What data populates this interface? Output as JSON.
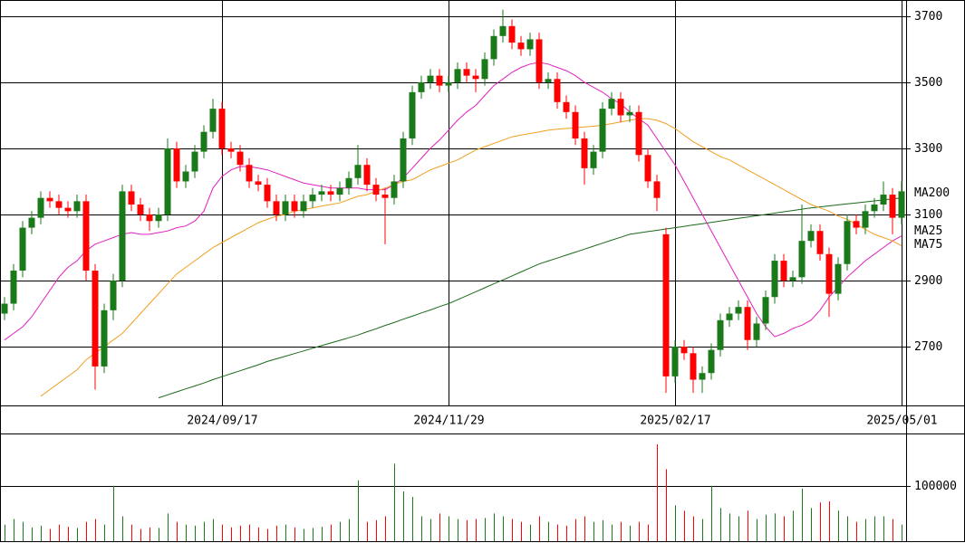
{
  "chart_data": [
    {
      "type": "candlestick",
      "categories": [
        null,
        null,
        null,
        null,
        null,
        null,
        null,
        null,
        null,
        null,
        null,
        null,
        null,
        null,
        null,
        null,
        null,
        null,
        null,
        null,
        null,
        null,
        null,
        null,
        "2024/09/17",
        null,
        null,
        null,
        null,
        null,
        null,
        null,
        null,
        null,
        null,
        null,
        null,
        null,
        null,
        null,
        null,
        null,
        null,
        null,
        null,
        null,
        null,
        null,
        null,
        "2024/11/29",
        null,
        null,
        null,
        null,
        null,
        null,
        null,
        null,
        null,
        null,
        null,
        null,
        null,
        null,
        null,
        null,
        null,
        null,
        null,
        null,
        null,
        null,
        null,
        null,
        "2025/02/17",
        null,
        null,
        null,
        null,
        null,
        null,
        null,
        null,
        null,
        null,
        null,
        null,
        null,
        null,
        null,
        null,
        null,
        null,
        null,
        null,
        null,
        null,
        null,
        null,
        "2025/05/01"
      ],
      "open": [
        2800,
        2830,
        2930,
        3060,
        3090,
        3150,
        3140,
        3120,
        3110,
        3140,
        2930,
        2640,
        2810,
        2900,
        3170,
        3130,
        3100,
        3080,
        3100,
        3300,
        3200,
        3230,
        3290,
        3350,
        3420,
        3300,
        3290,
        3250,
        3200,
        3190,
        3140,
        3100,
        3140,
        3110,
        3140,
        3160,
        3170,
        3160,
        3180,
        3210,
        3250,
        3190,
        3160,
        3150,
        3200,
        3330,
        3470,
        3500,
        3520,
        3490,
        3500,
        3540,
        3520,
        3510,
        3570,
        3640,
        3670,
        3620,
        3600,
        3630,
        3500,
        3510,
        3440,
        3410,
        3330,
        3240,
        3290,
        3420,
        3450,
        3400,
        3410,
        3280,
        3200,
        3040,
        2610,
        2700,
        2680,
        2600,
        2620,
        2690,
        2780,
        2800,
        2820,
        2720,
        2770,
        2850,
        2960,
        2900,
        2910,
        3020,
        3050,
        2980,
        2860,
        2950,
        3080,
        3060,
        3110,
        3130,
        3160,
        3090
      ],
      "high": [
        2850,
        2950,
        3080,
        3110,
        3170,
        3170,
        3160,
        3140,
        3160,
        3160,
        2950,
        2830,
        2920,
        3190,
        3190,
        3150,
        3120,
        3120,
        3330,
        3320,
        3250,
        3310,
        3370,
        3450,
        3440,
        3320,
        3310,
        3270,
        3220,
        3210,
        3160,
        3160,
        3160,
        3160,
        3180,
        3190,
        3190,
        3200,
        3230,
        3310,
        3270,
        3210,
        3180,
        3220,
        3350,
        3490,
        3520,
        3540,
        3540,
        3520,
        3560,
        3560,
        3540,
        3590,
        3660,
        3720,
        3690,
        3640,
        3650,
        3650,
        3530,
        3530,
        3460,
        3430,
        3350,
        3310,
        3440,
        3470,
        3470,
        3430,
        3430,
        3300,
        3220,
        3060,
        2720,
        2720,
        2700,
        2640,
        2710,
        2800,
        2820,
        2840,
        2840,
        2790,
        2870,
        2980,
        2980,
        2930,
        3130,
        3070,
        3070,
        3000,
        2970,
        3100,
        3100,
        3130,
        3150,
        3200,
        3180,
        3200
      ],
      "low": [
        2780,
        2810,
        2910,
        3040,
        3070,
        3120,
        3100,
        3090,
        3090,
        2900,
        2570,
        2620,
        2780,
        2880,
        3110,
        3080,
        3050,
        3060,
        3080,
        3180,
        3180,
        3210,
        3270,
        3330,
        3280,
        3270,
        3230,
        3180,
        3170,
        3120,
        3080,
        3080,
        3090,
        3090,
        3120,
        3140,
        3140,
        3140,
        3160,
        3190,
        3170,
        3140,
        3010,
        3130,
        3180,
        3310,
        3450,
        3480,
        3470,
        3470,
        3480,
        3500,
        3470,
        3490,
        3550,
        3620,
        3600,
        3580,
        3580,
        3480,
        3480,
        3420,
        3390,
        3310,
        3190,
        3220,
        3270,
        3400,
        3380,
        3380,
        3260,
        3180,
        3110,
        2560,
        2590,
        2660,
        2560,
        2560,
        2600,
        2670,
        2760,
        2780,
        2690,
        2700,
        2750,
        2830,
        2880,
        2880,
        2890,
        3000,
        2960,
        2790,
        2840,
        2930,
        3040,
        3040,
        3090,
        3110,
        3040,
        3070
      ],
      "close": [
        2830,
        2930,
        3060,
        3090,
        3150,
        3140,
        3120,
        3110,
        3140,
        2930,
        2640,
        2810,
        2900,
        3170,
        3130,
        3100,
        3080,
        3100,
        3300,
        3200,
        3230,
        3290,
        3350,
        3420,
        3300,
        3290,
        3250,
        3200,
        3190,
        3140,
        3100,
        3140,
        3110,
        3140,
        3160,
        3170,
        3160,
        3180,
        3210,
        3250,
        3190,
        3160,
        3150,
        3200,
        3330,
        3470,
        3500,
        3520,
        3490,
        3500,
        3540,
        3520,
        3510,
        3570,
        3640,
        3670,
        3620,
        3600,
        3630,
        3500,
        3510,
        3440,
        3410,
        3330,
        3240,
        3290,
        3420,
        3450,
        3400,
        3410,
        3280,
        3200,
        3150,
        2610,
        2700,
        2680,
        2600,
        2620,
        2690,
        2780,
        2800,
        2820,
        2720,
        2770,
        2850,
        2960,
        2900,
        2910,
        3020,
        3050,
        2980,
        2860,
        2950,
        3080,
        3060,
        3110,
        3130,
        3160,
        3090,
        3170
      ],
      "up_color": "#1a7a1a",
      "down_color": "#ff0000",
      "series": [
        {
          "name": "MA200",
          "color": "#1a6a1a",
          "values": [
            null,
            null,
            null,
            null,
            null,
            null,
            null,
            null,
            null,
            null,
            null,
            null,
            null,
            null,
            null,
            null,
            null,
            2545,
            2554,
            2563,
            2572,
            2581,
            2590,
            2600,
            2609,
            2618,
            2627,
            2636,
            2645,
            2655,
            2663,
            2671,
            2679,
            2687,
            2695,
            2703,
            2711,
            2719,
            2727,
            2735,
            2745,
            2754,
            2764,
            2773,
            2783,
            2792,
            2802,
            2811,
            2821,
            2830,
            2842,
            2854,
            2866,
            2878,
            2890,
            2902,
            2914,
            2926,
            2938,
            2950,
            2959,
            2968,
            2977,
            2986,
            2995,
            3004,
            3013,
            3022,
            3031,
            3040,
            3044,
            3048,
            3052,
            3056,
            3060,
            3064,
            3068,
            3072,
            3076,
            3080,
            3084,
            3088,
            3092,
            3096,
            3100,
            3104,
            3108,
            3112,
            3116,
            3120,
            3123,
            3126,
            3129,
            3132,
            3135,
            3138,
            3141,
            3144,
            3147,
            3150
          ]
        },
        {
          "name": "MA25",
          "color": "#e020c0",
          "values": [
            2720,
            2740,
            2760,
            2790,
            2830,
            2870,
            2910,
            2940,
            2960,
            2990,
            3010,
            3020,
            3030,
            3040,
            3045,
            3040,
            3040,
            3045,
            3050,
            3060,
            3065,
            3080,
            3110,
            3180,
            3215,
            3235,
            3245,
            3245,
            3240,
            3235,
            3225,
            3215,
            3205,
            3195,
            3190,
            3185,
            3180,
            3180,
            3180,
            3180,
            3175,
            3175,
            3175,
            3190,
            3210,
            3240,
            3270,
            3300,
            3325,
            3355,
            3385,
            3410,
            3430,
            3460,
            3490,
            3510,
            3530,
            3545,
            3555,
            3560,
            3555,
            3545,
            3535,
            3520,
            3500,
            3485,
            3470,
            3450,
            3435,
            3410,
            3390,
            3370,
            3330,
            3290,
            3250,
            3200,
            3150,
            3100,
            3050,
            3000,
            2950,
            2900,
            2850,
            2800,
            2760,
            2730,
            2740,
            2755,
            2765,
            2780,
            2810,
            2850,
            2880,
            2910,
            2935,
            2960,
            2980,
            3000,
            3020,
            3035
          ]
        },
        {
          "name": "MA75",
          "color": "#f0a020",
          "values": [
            null,
            null,
            null,
            null,
            2550,
            2570,
            2590,
            2610,
            2630,
            2660,
            2680,
            2700,
            2720,
            2740,
            2770,
            2800,
            2830,
            2860,
            2890,
            2920,
            2940,
            2960,
            2980,
            3000,
            3015,
            3030,
            3045,
            3060,
            3075,
            3085,
            3095,
            3100,
            3110,
            3115,
            3120,
            3125,
            3130,
            3135,
            3145,
            3155,
            3160,
            3170,
            3180,
            3190,
            3200,
            3205,
            3220,
            3235,
            3245,
            3255,
            3265,
            3280,
            3295,
            3305,
            3315,
            3325,
            3335,
            3340,
            3345,
            3350,
            3355,
            3358,
            3360,
            3362,
            3365,
            3367,
            3370,
            3375,
            3380,
            3385,
            3390,
            3390,
            3385,
            3375,
            3360,
            3340,
            3320,
            3305,
            3290,
            3275,
            3265,
            3250,
            3235,
            3220,
            3205,
            3190,
            3175,
            3160,
            3145,
            3130,
            3120,
            3110,
            3095,
            3085,
            3070,
            3055,
            3040,
            3030,
            3020,
            3005
          ]
        }
      ],
      "ylim": [
        2522,
        3749
      ],
      "yticks": [
        2700,
        2900,
        3100,
        3300,
        3500,
        3700
      ],
      "grid": true
    },
    {
      "type": "bar",
      "values": [
        30000,
        40000,
        35000,
        25000,
        28000,
        22000,
        30000,
        26000,
        24000,
        35000,
        40000,
        30000,
        100000,
        45000,
        30000,
        22000,
        25000,
        24000,
        50000,
        35000,
        30000,
        28000,
        35000,
        40000,
        30000,
        25000,
        28000,
        30000,
        25000,
        22000,
        28000,
        30000,
        25000,
        22000,
        24000,
        26000,
        30000,
        35000,
        40000,
        110000,
        35000,
        38000,
        45000,
        140000,
        90000,
        80000,
        45000,
        40000,
        50000,
        45000,
        40000,
        38000,
        40000,
        42000,
        50000,
        45000,
        40000,
        35000,
        30000,
        45000,
        35000,
        30000,
        28000,
        40000,
        45000,
        35000,
        38000,
        30000,
        35000,
        28000,
        35000,
        30000,
        175000,
        130000,
        65000,
        55000,
        45000,
        40000,
        100000,
        60000,
        50000,
        45000,
        55000,
        40000,
        48000,
        50000,
        45000,
        55000,
        95000,
        60000,
        70000,
        72000,
        55000,
        45000,
        35000,
        40000,
        45000,
        45000,
        40000,
        30000
      ],
      "ylim": [
        0,
        193000
      ],
      "yticks": [
        100000
      ],
      "grid": true
    }
  ]
}
